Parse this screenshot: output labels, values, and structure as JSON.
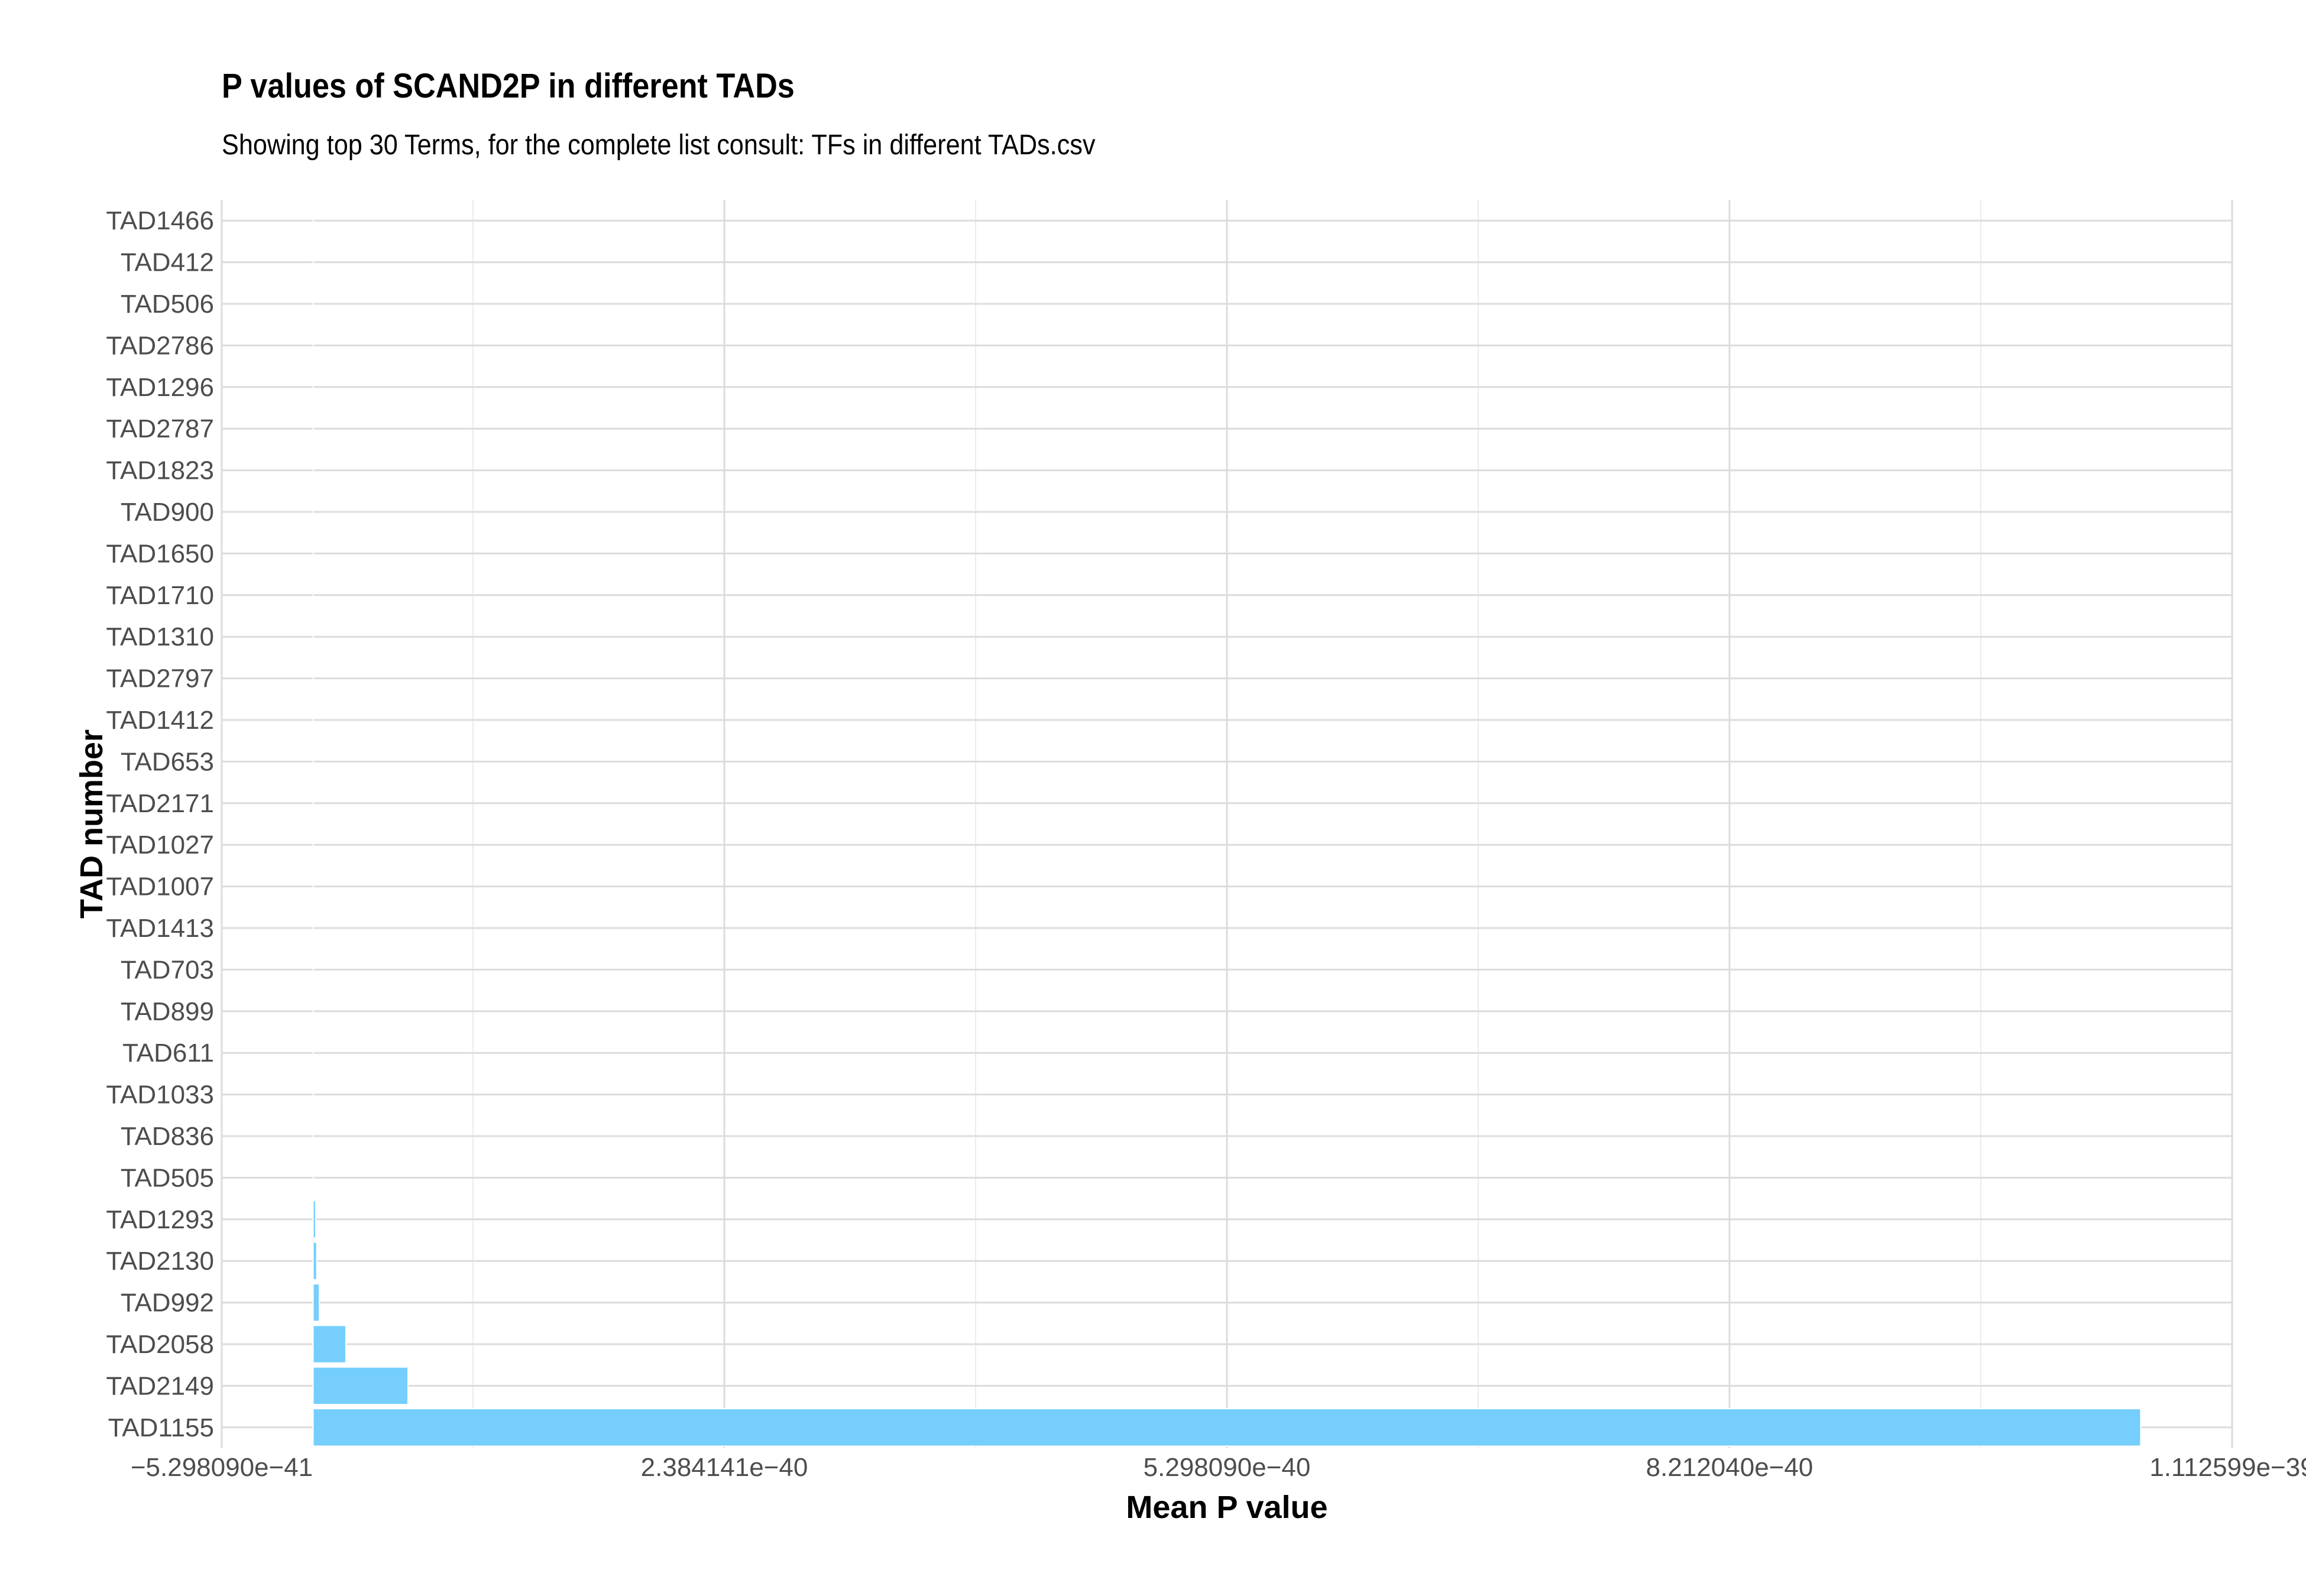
{
  "chart_data": {
    "type": "bar",
    "orientation": "horizontal",
    "title": "P values of SCAND2P in different TADs",
    "subtitle": "Showing top 30 Terms, for the complete list consult: TFs in different TADs.csv",
    "xlabel": "Mean P value",
    "ylabel": "TAD number",
    "categories": [
      "TAD1466",
      "TAD412",
      "TAD506",
      "TAD2786",
      "TAD1296",
      "TAD2787",
      "TAD1823",
      "TAD900",
      "TAD1650",
      "TAD1710",
      "TAD1310",
      "TAD2797",
      "TAD1412",
      "TAD653",
      "TAD2171",
      "TAD1027",
      "TAD1007",
      "TAD1413",
      "TAD703",
      "TAD899",
      "TAD611",
      "TAD1033",
      "TAD836",
      "TAD505",
      "TAD1293",
      "TAD2130",
      "TAD992",
      "TAD2058",
      "TAD2149",
      "TAD1155"
    ],
    "values": [
      1e-47,
      1e-47,
      1e-47,
      1e-47,
      1e-47,
      1e-47,
      1e-47,
      1e-47,
      1e-47,
      1e-47,
      1e-47,
      1e-47,
      1e-47,
      1e-47,
      1e-47,
      1e-47,
      1e-47,
      1e-47,
      1e-47,
      1e-47,
      1e-47,
      1e-47,
      1e-47,
      1e-46,
      1.5e-42,
      2.1e-42,
      3.6e-42,
      1.9e-41,
      5.5e-41,
      1.0596e-39
    ],
    "xlim": [
      -5.29809e-41,
      1.112599e-39
    ],
    "xticks": [
      -5.29809e-41,
      2.384141e-40,
      5.29809e-40,
      8.21204e-40,
      1.112599e-39
    ],
    "xtick_labels": [
      "−5.298090e−41",
      "2.384141e−40",
      "5.298090e−40",
      "8.212040e−40",
      "1.112599e−39"
    ],
    "grid": true,
    "bar_color": "#75CEFC"
  }
}
